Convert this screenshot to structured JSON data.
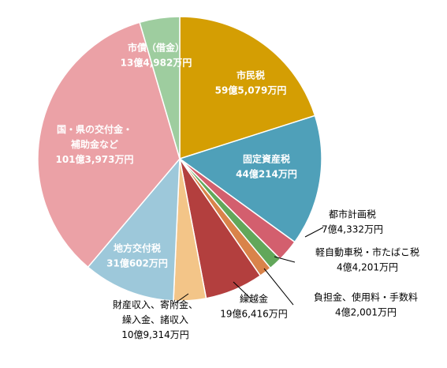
{
  "chart_data": {
    "type": "pie",
    "unit": "万円",
    "slices": [
      {
        "label": "市民税",
        "amount": "59億5,079万円",
        "value": 595079,
        "color": "#D49E03",
        "label_pos": "inside"
      },
      {
        "label": "固定資産税",
        "amount": "44億214万円",
        "value": 440214,
        "color": "#4FA0B9",
        "label_pos": "inside"
      },
      {
        "label": "都市計画税",
        "amount": "7億4,332万円",
        "value": 74332,
        "color": "#D35F6E",
        "label_pos": "outside"
      },
      {
        "label": "軽自動車税・市たばこ税",
        "amount": "4億4,201万円",
        "value": 44201,
        "color": "#62A75A",
        "label_pos": "outside"
      },
      {
        "label": "負担金、使用料・手数料",
        "amount": "4億2,001万円",
        "value": 42001,
        "color": "#D9834A",
        "label_pos": "outside"
      },
      {
        "label": "繰越金",
        "amount": "19億6,416万円",
        "value": 196416,
        "color": "#B33F3E",
        "label_pos": "outside"
      },
      {
        "label": "財産収入、寄附金、\n繰入金、諸収入",
        "amount": "10億9,314万円",
        "value": 109314,
        "color": "#F3C588",
        "label_pos": "outside"
      },
      {
        "label": "地方交付税",
        "amount": "31億602万円",
        "value": 310602,
        "color": "#9DC8DA",
        "label_pos": "inside"
      },
      {
        "label": "国・県の交付金・\n補助金など",
        "amount": "101億3,973万円",
        "value": 1013973,
        "color": "#EBA1A6",
        "label_pos": "inside"
      },
      {
        "label": "市債（借金）",
        "amount": "13億4,982万円",
        "value": 134982,
        "color": "#9ECD9F",
        "label_pos": "inside"
      }
    ],
    "start": "12 o'clock",
    "direction": "clockwise",
    "legend": "none"
  }
}
